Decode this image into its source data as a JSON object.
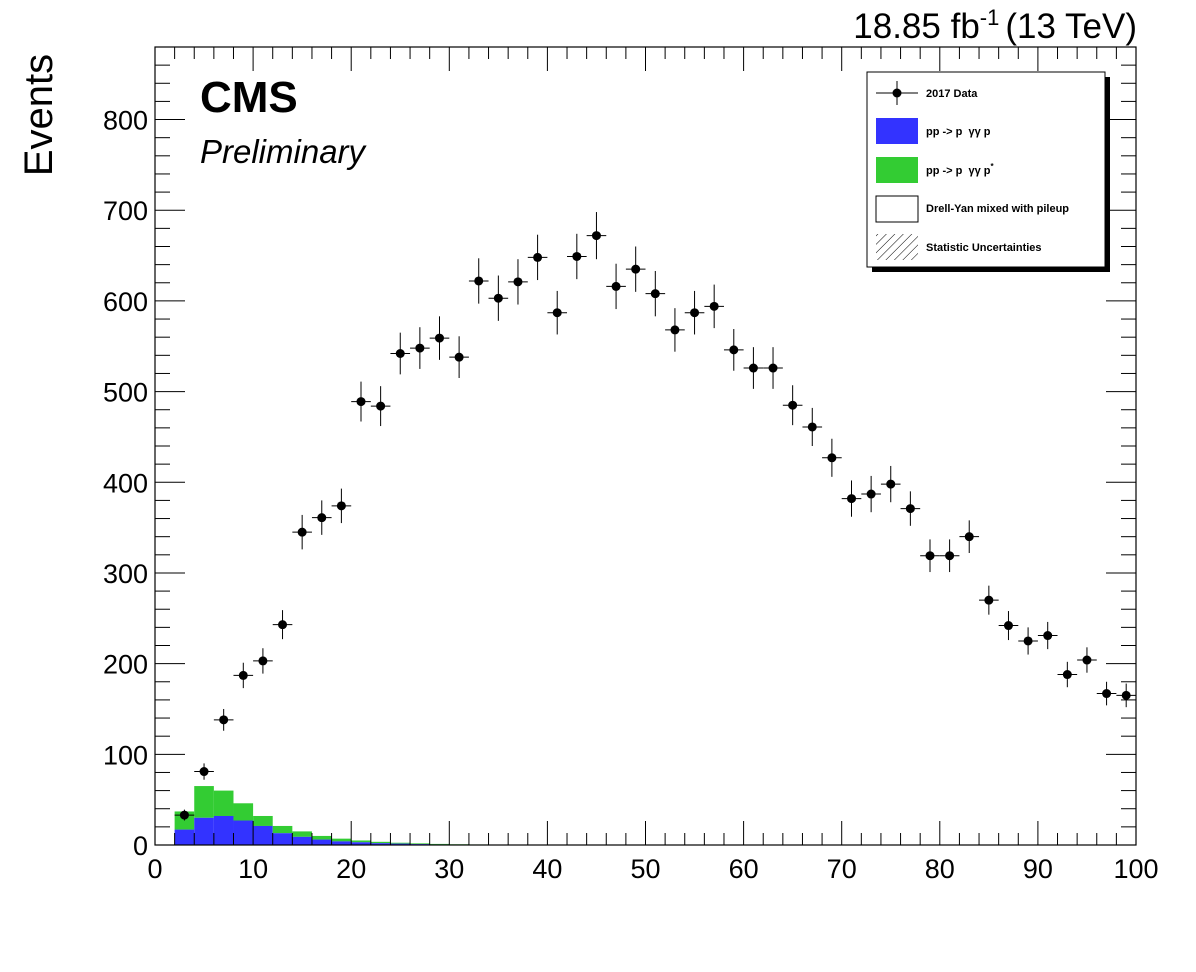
{
  "chart_data": {
    "type": "bar",
    "title": "",
    "xlabel": "",
    "ylabel": "Events",
    "xlim": [
      0,
      100
    ],
    "ylim": [
      0,
      880
    ],
    "x_ticks": [
      "0",
      "10",
      "20",
      "30",
      "40",
      "50",
      "60",
      "70",
      "80",
      "90",
      "100"
    ],
    "y_ticks": [
      "0",
      "100",
      "200",
      "300",
      "400",
      "500",
      "600",
      "700",
      "800"
    ],
    "lumi_label": {
      "value": "18.85 fb",
      "exponent": "-1",
      "energy": "(13 TeV)"
    },
    "experiment_label": "CMS",
    "status_label": "Preliminary",
    "legend": {
      "position": "top-right",
      "entries": [
        {
          "label": "2017 Data",
          "style": "marker"
        },
        {
          "label": "pp -> p  γγ p",
          "style": "fill",
          "color": "#3333ff"
        },
        {
          "label": "pp -> p  γγ p",
          "superscript": "*",
          "style": "fill",
          "color": "#33cc33"
        },
        {
          "label": "Drell-Yan mixed with pileup",
          "style": "fill",
          "color": "#ffffff"
        },
        {
          "label": "Statistic Uncertainties",
          "style": "hatch"
        }
      ]
    },
    "bin_edges": [
      2,
      4,
      6,
      8,
      10,
      12,
      14,
      16,
      18,
      20,
      22,
      24,
      26,
      28,
      30,
      32,
      34,
      36
    ],
    "series": [
      {
        "name": "pp -> p  γγ p",
        "color": "#3333ff",
        "values": [
          17,
          30,
          32,
          27,
          21,
          13,
          9,
          6,
          4,
          3,
          2,
          1.5,
          1,
          0.6,
          0.4,
          0.3,
          0.2
        ]
      },
      {
        "name": "pp -> p  γγ p*",
        "color": "#33cc33",
        "values": [
          20,
          35,
          28,
          19,
          11,
          8,
          6,
          4,
          3,
          2,
          1.5,
          1,
          0.8,
          0.6,
          0.4,
          0.3,
          0.2
        ]
      }
    ],
    "data": {
      "name": "2017 Data",
      "x": [
        3,
        5,
        7,
        9,
        11,
        13,
        15,
        17,
        19,
        21,
        23,
        25,
        27,
        29,
        31,
        33,
        35,
        37,
        39,
        41,
        43,
        45,
        47,
        49,
        51,
        53,
        55,
        57,
        59,
        61,
        63,
        65,
        67,
        69,
        71,
        73,
        75,
        77,
        79,
        81,
        83,
        85,
        87,
        89,
        91,
        93,
        95,
        97,
        99
      ],
      "y": [
        33,
        81,
        138,
        187,
        203,
        243,
        345,
        361,
        374,
        489,
        484,
        542,
        548,
        559,
        538,
        622,
        603,
        621,
        648,
        587,
        649,
        672,
        616,
        635,
        608,
        568,
        587,
        594,
        546,
        526,
        526,
        485,
        461,
        427,
        382,
        387,
        398,
        371,
        319,
        319,
        340,
        270,
        242,
        225,
        231,
        188,
        204,
        167,
        165
      ],
      "yerr": [
        6,
        9,
        12,
        14,
        14,
        16,
        19,
        19,
        19,
        22,
        22,
        23,
        23,
        24,
        23,
        25,
        25,
        25,
        25,
        24,
        25,
        26,
        25,
        25,
        25,
        24,
        24,
        24,
        23,
        23,
        23,
        22,
        21,
        21,
        20,
        20,
        20,
        19,
        18,
        18,
        18,
        16,
        16,
        15,
        15,
        14,
        14,
        13,
        13
      ],
      "xerr": 1
    }
  }
}
